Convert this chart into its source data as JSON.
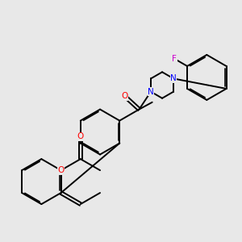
{
  "bg": "#e8e8e8",
  "bond_color": "#000000",
  "O_color": "#ff0000",
  "N_color": "#0000ff",
  "F_color": "#cc00cc",
  "lw": 1.4,
  "lw_inner": 1.2,
  "figsize": [
    3.0,
    3.0
  ],
  "dpi": 100,
  "xlim": [
    -1.5,
    8.5
  ],
  "ylim": [
    -1.0,
    8.5
  ]
}
